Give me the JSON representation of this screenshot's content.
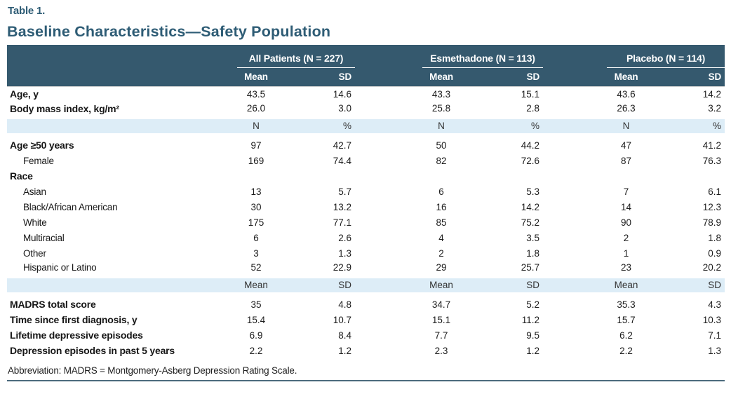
{
  "page": {
    "table_label": "Table 1.",
    "title": "Baseline Characteristics—Safety Population",
    "footnote": "Abbreviation: MADRS = Montgomery-Asberg Depression Rating Scale."
  },
  "colors": {
    "accent": "#2e5c75",
    "header_bg": "#35596e",
    "band_bg": "#ddedf7",
    "rule": "#4c6b7d"
  },
  "columns": {
    "groups": [
      "All Patients (N = 227)",
      "Esmethadone (N = 113)",
      "Placebo (N = 114)"
    ]
  },
  "sections": [
    {
      "stats": [
        "Mean",
        "SD"
      ],
      "rows": [
        {
          "label": "Age, y",
          "values": [
            "43.5",
            "14.6",
            "43.3",
            "15.1",
            "43.6",
            "14.2"
          ]
        },
        {
          "label": "Body mass index, kg/m²",
          "values": [
            "26.0",
            "3.0",
            "25.8",
            "2.8",
            "26.3",
            "3.2"
          ]
        }
      ]
    },
    {
      "stats": [
        "N",
        "%"
      ],
      "rows": [
        {
          "label": "Age ≥50 years",
          "values": [
            "97",
            "42.7",
            "50",
            "44.2",
            "47",
            "41.2"
          ]
        },
        {
          "label": "Female",
          "sub": true,
          "values": [
            "169",
            "74.4",
            "82",
            "72.6",
            "87",
            "76.3"
          ]
        },
        {
          "label": "Race",
          "values": [
            "",
            "",
            "",
            "",
            "",
            ""
          ]
        },
        {
          "label": "Asian",
          "sub": true,
          "values": [
            "13",
            "5.7",
            "6",
            "5.3",
            "7",
            "6.1"
          ]
        },
        {
          "label": "Black/African American",
          "sub": true,
          "values": [
            "30",
            "13.2",
            "16",
            "14.2",
            "14",
            "12.3"
          ]
        },
        {
          "label": "White",
          "sub": true,
          "values": [
            "175",
            "77.1",
            "85",
            "75.2",
            "90",
            "78.9"
          ]
        },
        {
          "label": "Multiracial",
          "sub": true,
          "values": [
            "6",
            "2.6",
            "4",
            "3.5",
            "2",
            "1.8"
          ]
        },
        {
          "label": "Other",
          "sub": true,
          "values": [
            "3",
            "1.3",
            "2",
            "1.8",
            "1",
            "0.9"
          ]
        },
        {
          "label": "Hispanic or Latino",
          "sub": true,
          "values": [
            "52",
            "22.9",
            "29",
            "25.7",
            "23",
            "20.2"
          ]
        }
      ]
    },
    {
      "stats": [
        "Mean",
        "SD"
      ],
      "rows": [
        {
          "label": "MADRS total score",
          "values": [
            "35",
            "4.8",
            "34.7",
            "5.2",
            "35.3",
            "4.3"
          ]
        },
        {
          "label": "Time since first diagnosis, y",
          "values": [
            "15.4",
            "10.7",
            "15.1",
            "11.2",
            "15.7",
            "10.3"
          ]
        },
        {
          "label": "Lifetime depressive episodes",
          "values": [
            "6.9",
            "8.4",
            "7.7",
            "9.5",
            "6.2",
            "7.1"
          ]
        },
        {
          "label": "Depression episodes in past 5 years",
          "values": [
            "2.2",
            "1.2",
            "2.3",
            "1.2",
            "2.2",
            "1.3"
          ]
        }
      ]
    }
  ]
}
